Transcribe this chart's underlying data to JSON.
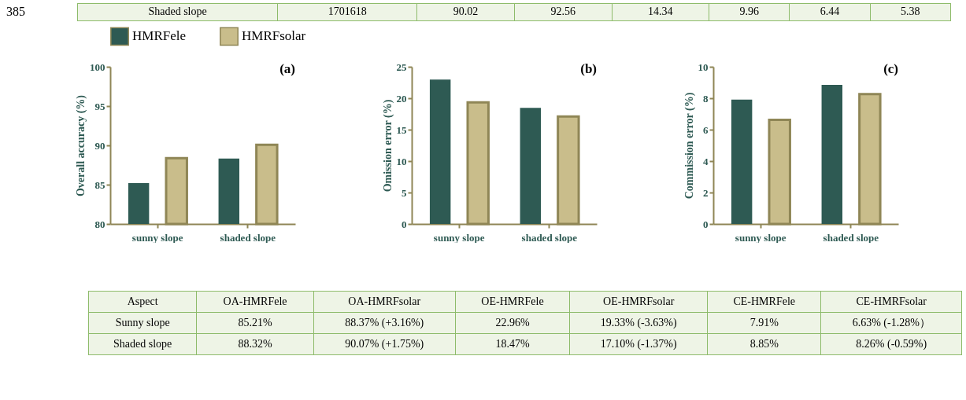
{
  "chart_data": [
    {
      "type": "other",
      "annotations": [
        "385",
        "Shaded slope",
        "1701618",
        "90.02",
        "92.56",
        "14.34",
        "9.96",
        "6.44",
        "5.38"
      ]
    },
    {
      "type": "bar",
      "title": "(a)",
      "ylabel": "Overall accuracy (%)",
      "categories": [
        "sunny slope",
        "shaded slope"
      ],
      "series": [
        {
          "name": "HMRFele",
          "color": "#2e5a53",
          "values": [
            85.21,
            88.32
          ]
        },
        {
          "name": "HMRFsolar",
          "color": "#c9bd8b",
          "values": [
            88.37,
            90.07
          ]
        }
      ],
      "ylim": [
        80,
        100
      ],
      "yticks": [
        80,
        85,
        90,
        95,
        100
      ],
      "grid": false,
      "legend": "top"
    },
    {
      "type": "bar",
      "title": "(b)",
      "ylabel": "Omission error (%)",
      "categories": [
        "sunny slope",
        "shaded slope"
      ],
      "series": [
        {
          "name": "HMRFele",
          "color": "#2e5a53",
          "values": [
            22.96,
            18.47
          ]
        },
        {
          "name": "HMRFsolar",
          "color": "#c9bd8b",
          "values": [
            19.33,
            17.1
          ]
        }
      ],
      "ylim": [
        0,
        25
      ],
      "yticks": [
        0,
        5,
        10,
        15,
        20,
        25
      ],
      "grid": false,
      "legend": "top"
    },
    {
      "type": "bar",
      "title": "(c)",
      "ylabel": "Commission error (%)",
      "categories": [
        "sunny slope",
        "shaded slope"
      ],
      "series": [
        {
          "name": "HMRFele",
          "color": "#2e5a53",
          "values": [
            7.91,
            8.85
          ]
        },
        {
          "name": "HMRFsolar",
          "color": "#c9bd8b",
          "values": [
            6.63,
            8.26
          ]
        }
      ],
      "ylim": [
        0,
        10
      ],
      "yticks": [
        0,
        2,
        4,
        6,
        8,
        10
      ],
      "grid": false,
      "legend": "top"
    },
    {
      "type": "other",
      "annotations": [
        "Aspect",
        "OA-HMRFele",
        "OA-HMRFsolar",
        "OE-HMRFele",
        "OE-HMRFsolar",
        "CE-HMRFele",
        "CE-HMRFsolar",
        "Sunny slope",
        "85.21%",
        "88.37% (+3.16%)",
        "22.96%",
        "19.33% (-3.63%)",
        "7.91%",
        "6.63% (-1.28%）",
        "Shaded slope",
        "88.32%",
        "90.07% (+1.75%)",
        "18.47%",
        "17.10% (-1.37%)",
        "8.85%",
        "8.26% (-0.59%)"
      ]
    }
  ]
}
